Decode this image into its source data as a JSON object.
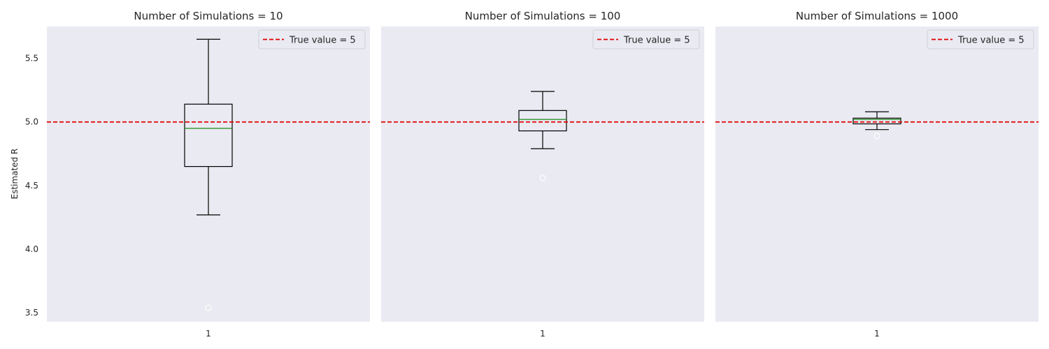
{
  "figure": {
    "ylabel": "Estimated R",
    "background": "#eaeaf2",
    "reference_color": "#e00000",
    "median_color": "#1a8a1a"
  },
  "chart_data": [
    {
      "type": "box",
      "title": "Number of Simulations = 10",
      "x_ticks": [
        "1"
      ],
      "ylabel": "Estimated R",
      "ylim": [
        3.43,
        5.75
      ],
      "y_ticks": [
        "3.5",
        "4.0",
        "4.5",
        "5.0",
        "5.5"
      ],
      "grid": false,
      "legend": {
        "position": "top-right",
        "entries": [
          "True value = 5"
        ]
      },
      "reference_line": {
        "y": 5,
        "label": "True value = 5",
        "style": "dashed"
      },
      "box": {
        "whisker_low": 4.27,
        "q1": 4.65,
        "median": 4.95,
        "q3": 5.14,
        "whisker_high": 5.65,
        "outliers": [
          3.54
        ]
      }
    },
    {
      "type": "box",
      "title": "Number of Simulations = 100",
      "x_ticks": [
        "1"
      ],
      "ylim": [
        3.43,
        5.75
      ],
      "grid": false,
      "legend": {
        "position": "top-right",
        "entries": [
          "True value = 5"
        ]
      },
      "reference_line": {
        "y": 5,
        "label": "True value = 5",
        "style": "dashed"
      },
      "box": {
        "whisker_low": 4.79,
        "q1": 4.93,
        "median": 5.02,
        "q3": 5.09,
        "whisker_high": 5.24,
        "outliers": [
          4.56
        ]
      }
    },
    {
      "type": "box",
      "title": "Number of Simulations = 1000",
      "x_ticks": [
        "1"
      ],
      "ylim": [
        3.43,
        5.75
      ],
      "grid": false,
      "legend": {
        "position": "top-right",
        "entries": [
          "True value = 5"
        ]
      },
      "reference_line": {
        "y": 5,
        "label": "True value = 5",
        "style": "dashed"
      },
      "box": {
        "whisker_low": 4.94,
        "q1": 4.985,
        "median": 5.02,
        "q3": 5.03,
        "whisker_high": 5.08,
        "outliers": [
          4.89
        ]
      }
    }
  ]
}
